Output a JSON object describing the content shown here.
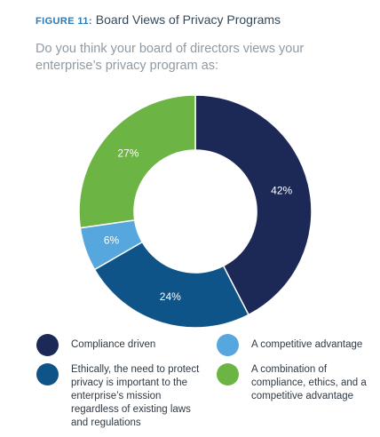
{
  "figure": {
    "label": "FIGURE 11:",
    "title": "Board Views of Privacy Programs",
    "question": "Do you think your board of directors views your enterprise’s privacy program as:"
  },
  "chart_data": {
    "type": "pie",
    "title": "Board Views of Privacy Programs",
    "donut": true,
    "legend_position": "bottom",
    "slices": [
      {
        "label": "Compliance driven",
        "value": 42,
        "display": "42%",
        "color": "#1c2855"
      },
      {
        "label": "Ethically, the need to protect privacy is important to the enterprise’s mission regardless of existing laws and regulations",
        "value": 24,
        "display": "24%",
        "color": "#0e5488"
      },
      {
        "label": "A competitive advantage",
        "value": 6,
        "display": "6%",
        "color": "#56a7dd"
      },
      {
        "label": "A combination of compliance, ethics, and a competitive advantage",
        "value": 27,
        "display": "27%",
        "color": "#6cb444"
      }
    ]
  },
  "legend": [
    {
      "label": "Compliance driven",
      "color": "#1c2855"
    },
    {
      "label": "A competitive advantage",
      "color": "#56a7dd"
    },
    {
      "label": "Ethically, the need to protect privacy is important to the enterprise’s mission regardless of existing laws and regulations",
      "color": "#0e5488"
    },
    {
      "label": "A combination of compliance, ethics, and a competitive advantage",
      "color": "#6cb444"
    }
  ]
}
